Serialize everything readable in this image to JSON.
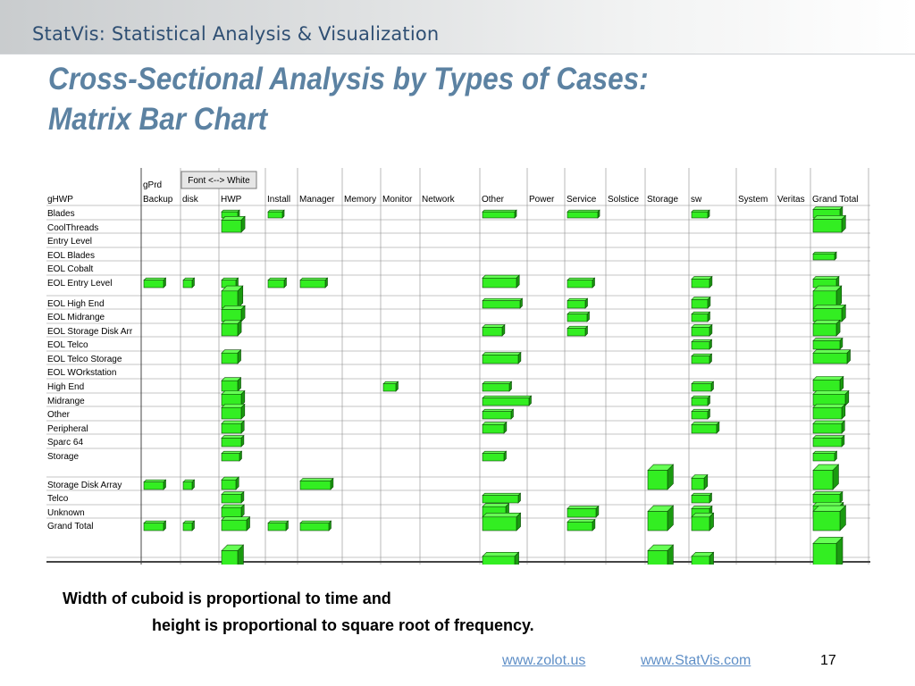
{
  "header": {
    "app_title": "StatVis: Statistical Analysis & Visualization"
  },
  "slide": {
    "title_line1": "Cross-Sectional Analysis by Types of Cases:",
    "title_line2": "Matrix Bar Chart",
    "caption_line1": "Width of cuboid is proportional to time and",
    "caption_line2": "height is proportional to square root of frequency.",
    "link1": "www.zolot.us",
    "link2": "www.StatVis.com",
    "page_number": "17"
  },
  "colors": {
    "bar_fill": "#33ee22",
    "bar_top": "#66ff55",
    "bar_side": "#1a9a10",
    "bar_outline": "#0a4a05",
    "grid": "#8c8c8c"
  },
  "chart_data": {
    "type": "matrix bar",
    "column_field": "gPrd",
    "row_field": "gHWP",
    "button_label": "Font <--> White",
    "columns": [
      "Backup",
      "disk",
      "HWP",
      "Install",
      "Manager",
      "Memory",
      "Monitor",
      "Network",
      "Other",
      "Power",
      "Service",
      "Solstice",
      "Storage",
      "sw",
      "System",
      "Veritas",
      "Grand Total"
    ],
    "rows": [
      "Blades",
      "CoolThreads",
      "Entry Level",
      "EOL Blades",
      "EOL Cobalt",
      "EOL Entry Level",
      "EOL High End",
      "EOL Midrange",
      "EOL Storage Disk Arr",
      "EOL Telco",
      "EOL Telco Storage",
      "EOL WOrkstation",
      "High End",
      "Midrange",
      "Other",
      "Peripheral",
      "Sparc 64",
      "Storage",
      "Storage Disk Array",
      "Telco",
      "Unknown",
      "Grand Total"
    ],
    "width_meaning": "time",
    "height_meaning": "square root of frequency",
    "cells": [
      [
        0,
        2,
        0.45,
        2
      ],
      [
        0,
        3,
        0.4,
        2
      ],
      [
        0,
        8,
        0.9,
        2
      ],
      [
        0,
        10,
        0.85,
        2
      ],
      [
        0,
        13,
        0.45,
        2
      ],
      [
        0,
        16,
        0.75,
        4
      ],
      [
        1,
        2,
        0.55,
        8
      ],
      [
        1,
        16,
        0.8,
        9
      ],
      [
        3,
        16,
        0.6,
        2
      ],
      [
        5,
        0,
        0.55,
        3
      ],
      [
        5,
        1,
        0.25,
        3
      ],
      [
        5,
        2,
        0.4,
        3
      ],
      [
        5,
        3,
        0.45,
        3
      ],
      [
        5,
        4,
        0.7,
        3
      ],
      [
        5,
        8,
        0.95,
        5
      ],
      [
        5,
        10,
        0.7,
        3
      ],
      [
        5,
        13,
        0.5,
        4
      ],
      [
        5,
        16,
        0.65,
        4
      ],
      [
        6,
        2,
        0.45,
        16
      ],
      [
        6,
        8,
        1.05,
        3
      ],
      [
        6,
        10,
        0.5,
        3
      ],
      [
        6,
        13,
        0.45,
        4
      ],
      [
        6,
        16,
        0.65,
        16
      ],
      [
        7,
        2,
        0.55,
        8
      ],
      [
        7,
        10,
        0.55,
        3
      ],
      [
        7,
        13,
        0.45,
        3
      ],
      [
        7,
        16,
        0.8,
        9
      ],
      [
        8,
        2,
        0.45,
        8
      ],
      [
        8,
        8,
        0.55,
        4
      ],
      [
        8,
        10,
        0.5,
        3
      ],
      [
        8,
        13,
        0.5,
        4
      ],
      [
        8,
        16,
        0.65,
        8
      ],
      [
        9,
        13,
        0.5,
        3
      ],
      [
        9,
        16,
        0.75,
        4
      ],
      [
        10,
        2,
        0.45,
        6
      ],
      [
        10,
        8,
        1.0,
        4
      ],
      [
        10,
        13,
        0.5,
        3
      ],
      [
        10,
        16,
        0.95,
        6
      ],
      [
        12,
        2,
        0.45,
        6
      ],
      [
        12,
        6,
        0.35,
        3
      ],
      [
        12,
        8,
        0.75,
        3
      ],
      [
        12,
        13,
        0.55,
        3
      ],
      [
        12,
        16,
        0.75,
        7
      ],
      [
        13,
        2,
        0.55,
        7
      ],
      [
        13,
        8,
        1.3,
        3
      ],
      [
        13,
        13,
        0.45,
        3
      ],
      [
        13,
        16,
        0.9,
        7
      ],
      [
        14,
        2,
        0.55,
        7
      ],
      [
        14,
        8,
        0.8,
        3
      ],
      [
        14,
        13,
        0.45,
        3
      ],
      [
        14,
        16,
        0.8,
        7
      ],
      [
        15,
        2,
        0.55,
        5
      ],
      [
        15,
        8,
        0.6,
        4
      ],
      [
        15,
        13,
        0.7,
        4
      ],
      [
        15,
        16,
        0.8,
        5
      ],
      [
        16,
        2,
        0.55,
        4
      ],
      [
        16,
        16,
        0.8,
        4
      ],
      [
        17,
        2,
        0.5,
        3
      ],
      [
        17,
        8,
        0.6,
        3
      ],
      [
        17,
        16,
        0.6,
        3
      ],
      [
        18,
        0,
        0.55,
        3
      ],
      [
        18,
        1,
        0.25,
        3
      ],
      [
        18,
        2,
        0.4,
        5
      ],
      [
        18,
        4,
        0.85,
        4
      ],
      [
        18,
        12,
        0.55,
        20
      ],
      [
        18,
        13,
        0.35,
        7
      ],
      [
        18,
        16,
        0.55,
        20
      ],
      [
        19,
        2,
        0.55,
        4
      ],
      [
        19,
        8,
        1.0,
        3
      ],
      [
        19,
        13,
        0.5,
        3
      ],
      [
        19,
        16,
        0.75,
        4
      ],
      [
        20,
        2,
        0.55,
        5
      ],
      [
        20,
        8,
        0.65,
        6
      ],
      [
        20,
        10,
        0.8,
        4
      ],
      [
        20,
        13,
        0.5,
        4
      ],
      [
        20,
        16,
        0.75,
        7
      ],
      [
        21,
        0,
        0.55,
        3
      ],
      [
        21,
        1,
        0.25,
        3
      ],
      [
        21,
        2,
        0.7,
        6
      ],
      [
        21,
        3,
        0.5,
        3
      ],
      [
        21,
        4,
        0.8,
        3
      ],
      [
        21,
        8,
        0.95,
        10
      ],
      [
        21,
        10,
        0.7,
        4
      ],
      [
        21,
        12,
        0.55,
        20
      ],
      [
        21,
        13,
        0.5,
        10
      ],
      [
        21,
        16,
        0.75,
        20
      ],
      [
        22,
        2,
        0.45,
        20
      ],
      [
        22,
        8,
        0.9,
        10
      ],
      [
        22,
        12,
        0.55,
        20
      ],
      [
        22,
        13,
        0.5,
        10
      ],
      [
        22,
        16,
        0.65,
        38
      ]
    ]
  }
}
